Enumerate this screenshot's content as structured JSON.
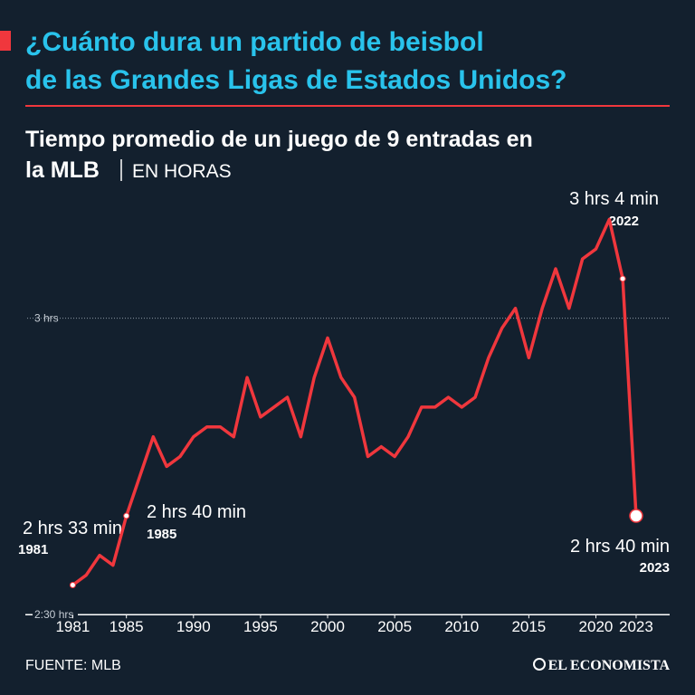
{
  "chart_data": {
    "type": "line",
    "title": [
      "¿Cuánto dura un partido de beisbol",
      "de las Grandes Ligas de Estados Unidos?"
    ],
    "subtitle": [
      "Tiempo promedio de un juego de 9 entradas en",
      "la MLB"
    ],
    "unit": "EN HORAS",
    "x": [
      1981,
      1982,
      1983,
      1984,
      1985,
      1986,
      1987,
      1988,
      1989,
      1990,
      1991,
      1992,
      1993,
      1994,
      1995,
      1996,
      1997,
      1998,
      1999,
      2000,
      2001,
      2002,
      2003,
      2004,
      2005,
      2006,
      2007,
      2008,
      2009,
      2010,
      2011,
      2012,
      2013,
      2014,
      2015,
      2016,
      2017,
      2018,
      2019,
      2020,
      2021,
      2022,
      2023
    ],
    "series": [
      {
        "name": "Tiempo promedio",
        "color": "#f0373d",
        "values": [
          153,
          154,
          156,
          155,
          160,
          164,
          168,
          165,
          166,
          168,
          169,
          169,
          168,
          174,
          170,
          171,
          172,
          168,
          174,
          178,
          174,
          172,
          166,
          167,
          166,
          168,
          171,
          171,
          172,
          171,
          172,
          176,
          179,
          181,
          176,
          181,
          185,
          181,
          186,
          187,
          190,
          184,
          160
        ]
      }
    ],
    "xlim": [
      1977.6,
      2025.5
    ],
    "xticks": [
      1981,
      1985,
      1990,
      1995,
      2000,
      2005,
      2010,
      2015,
      2020,
      2023
    ],
    "ylim": [
      147,
      197
    ],
    "yticks": [
      {
        "value": 150,
        "label": "2:30 hrs"
      },
      {
        "value": 180,
        "label": "3 hrs"
      }
    ],
    "annotations": [
      {
        "text": "2 hrs 33 min",
        "year": "1981"
      },
      {
        "text": "2 hrs 40 min",
        "year": "1985"
      },
      {
        "text": "3 hrs 4 min",
        "year": "2022"
      },
      {
        "text": "2 hrs 40 min",
        "year": "2023"
      }
    ],
    "source": "FUENTE: MLB",
    "brand": "EL ECONOMISTA"
  }
}
